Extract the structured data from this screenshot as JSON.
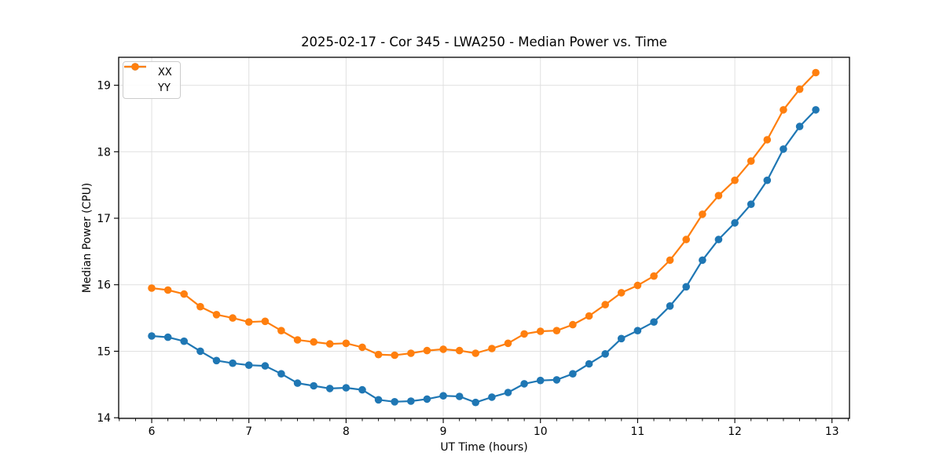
{
  "figure": {
    "background": "#ffffff",
    "spine_color": "#000000",
    "grid_color": "#e0e0e0"
  },
  "chart_data": {
    "type": "line",
    "title": "2025-02-17 - Cor 345 - LWA250 - Median Power vs. Time",
    "xlabel": "UT Time (hours)",
    "ylabel": "Median Power (CPU)",
    "xlim": [
      5.66,
      13.18
    ],
    "ylim": [
      13.99,
      19.42
    ],
    "x_ticks": [
      6,
      7,
      8,
      9,
      10,
      11,
      12,
      13
    ],
    "y_ticks": [
      14,
      15,
      16,
      17,
      18,
      19
    ],
    "x_minor_step": 0.16667,
    "grid": "major-both-axes",
    "legend_position": "upper-left",
    "marker": "circle",
    "x": [
      6.0,
      6.167,
      6.333,
      6.5,
      6.667,
      6.833,
      7.0,
      7.167,
      7.333,
      7.5,
      7.667,
      7.833,
      8.0,
      8.167,
      8.333,
      8.5,
      8.667,
      8.833,
      9.0,
      9.167,
      9.333,
      9.5,
      9.667,
      9.833,
      10.0,
      10.167,
      10.333,
      10.5,
      10.667,
      10.833,
      11.0,
      11.167,
      11.333,
      11.5,
      11.667,
      11.833,
      12.0,
      12.167,
      12.333,
      12.5,
      12.667,
      12.833
    ],
    "series": [
      {
        "name": "XX",
        "color": "#1f77b4",
        "values": [
          15.23,
          15.21,
          15.15,
          15.0,
          14.86,
          14.82,
          14.79,
          14.78,
          14.66,
          14.52,
          14.48,
          14.44,
          14.45,
          14.42,
          14.27,
          14.24,
          14.25,
          14.28,
          14.33,
          14.32,
          14.23,
          14.31,
          14.38,
          14.51,
          14.56,
          14.57,
          14.66,
          14.81,
          14.96,
          15.19,
          15.31,
          15.44,
          15.68,
          15.97,
          16.37,
          16.68,
          16.93,
          17.21,
          17.57,
          18.04,
          18.38,
          18.63
        ]
      },
      {
        "name": "YY",
        "color": "#ff7f0e",
        "values": [
          15.95,
          15.92,
          15.86,
          15.67,
          15.55,
          15.5,
          15.44,
          15.45,
          15.31,
          15.17,
          15.14,
          15.11,
          15.12,
          15.06,
          14.95,
          14.94,
          14.97,
          15.01,
          15.03,
          15.01,
          14.97,
          15.04,
          15.12,
          15.26,
          15.3,
          15.31,
          15.4,
          15.53,
          15.7,
          15.88,
          15.99,
          16.13,
          16.37,
          16.68,
          17.06,
          17.34,
          17.57,
          17.86,
          18.18,
          18.63,
          18.94,
          19.19
        ]
      }
    ]
  }
}
